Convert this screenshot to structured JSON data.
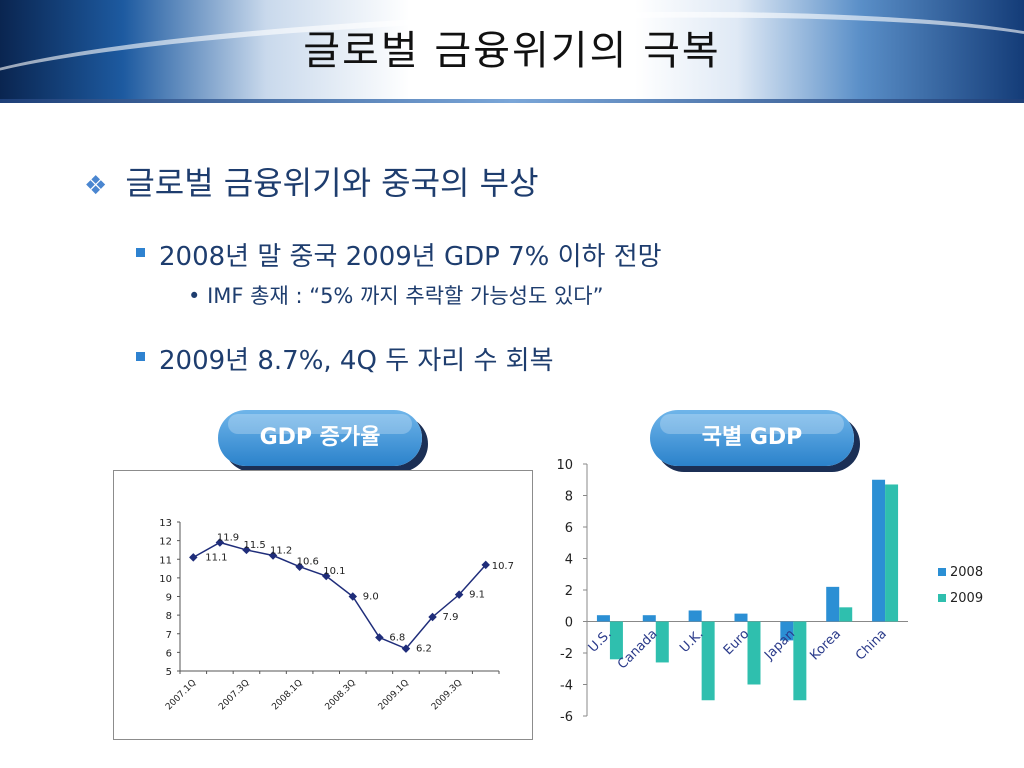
{
  "slide": {
    "title": "글로벌 금융위기의 극복",
    "bullet": "글로벌 금융위기와 중국의 부상",
    "sub1": "2008년 말 중국 2009년 GDP 7% 이하 전망",
    "subsub1": "IMF 총재 : “5% 까지 추락할 가능성도 있다”",
    "sub2": "2009년 8.7%, 4Q 두 자리 수 회복",
    "button_left": "GDP 증가율",
    "button_right": "국별 GDP"
  },
  "chart_data": [
    {
      "type": "line",
      "x": [
        "2007.1Q",
        "2007.2Q",
        "2007.3Q",
        "2007.4Q",
        "2008.1Q",
        "2008.2Q",
        "2008.3Q",
        "2008.4Q",
        "2009.1Q",
        "2009.2Q",
        "2009.3Q",
        "2009.4Q"
      ],
      "xticks_shown": [
        "2007.1Q",
        "2007.3Q",
        "2008.1Q",
        "2008.3Q",
        "2009.1Q",
        "2009.3Q"
      ],
      "values": [
        11.1,
        11.9,
        11.5,
        11.2,
        10.6,
        10.1,
        9.0,
        6.8,
        6.2,
        7.9,
        9.1,
        10.7
      ],
      "labels": [
        "11.1",
        "11.9",
        "11.5",
        "11.2",
        "10.6",
        "10.1",
        "9.0",
        "6.8",
        "6.2",
        "7.9",
        "9.1",
        "10.7"
      ],
      "ylim": [
        5,
        13
      ],
      "yticks": [
        5,
        6,
        7,
        8,
        9,
        10,
        11,
        12,
        13
      ],
      "color": "#1f2d7a"
    },
    {
      "type": "bar",
      "categories": [
        "U.S.",
        "Canada",
        "U.K.",
        "Euro",
        "Japan",
        "Korea",
        "China"
      ],
      "series": [
        {
          "name": "2008",
          "values": [
            0.4,
            0.4,
            0.7,
            0.5,
            -1.2,
            2.2,
            9.0
          ],
          "color": "#2b8fd4"
        },
        {
          "name": "2009",
          "values": [
            -2.4,
            -2.6,
            -5.0,
            -4.0,
            -5.0,
            0.9,
            8.7
          ],
          "color": "#2fbfae"
        }
      ],
      "ylim": [
        -6,
        10
      ],
      "yticks": [
        -6,
        -4,
        -2,
        0,
        2,
        4,
        6,
        8,
        10
      ],
      "legend": "right"
    }
  ]
}
